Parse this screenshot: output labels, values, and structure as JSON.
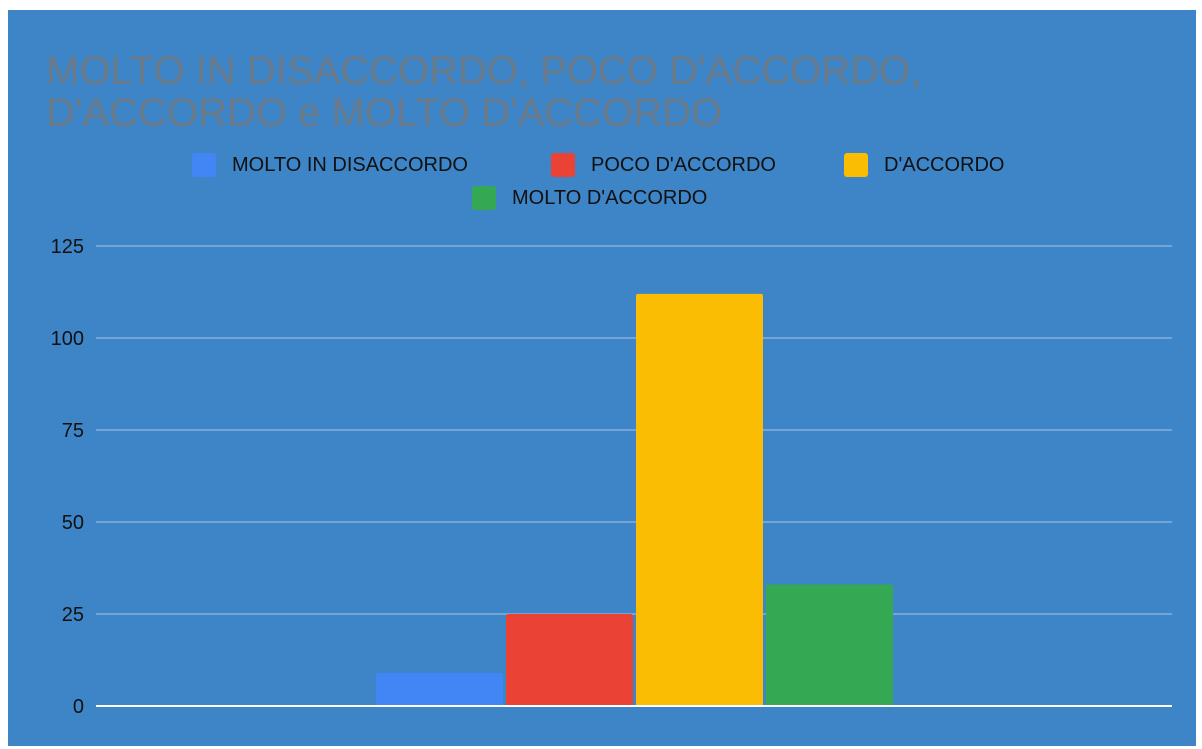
{
  "chart_data": {
    "type": "bar",
    "title_lines": [
      "MOLTO IN DISACCORDO, POCO D'ACCORDO,",
      "D'ACCORDO e MOLTO D'ACCORDO"
    ],
    "series": [
      {
        "name": "MOLTO IN DISACCORDO",
        "values": [
          9
        ],
        "color": "#4285f4"
      },
      {
        "name": "POCO D'ACCORDO",
        "values": [
          25
        ],
        "color": "#ea4335"
      },
      {
        "name": "D'ACCORDO",
        "values": [
          112
        ],
        "color": "#fbbc04"
      },
      {
        "name": "MOLTO D'ACCORDO",
        "values": [
          33
        ],
        "color": "#34a853"
      }
    ],
    "ylim": [
      0,
      125
    ],
    "yticks": [
      "0",
      "25",
      "50",
      "75",
      "100",
      "125"
    ],
    "grid": true,
    "legend_position": "top",
    "background": "#3d85c6",
    "title_color": "#6b7a89"
  }
}
